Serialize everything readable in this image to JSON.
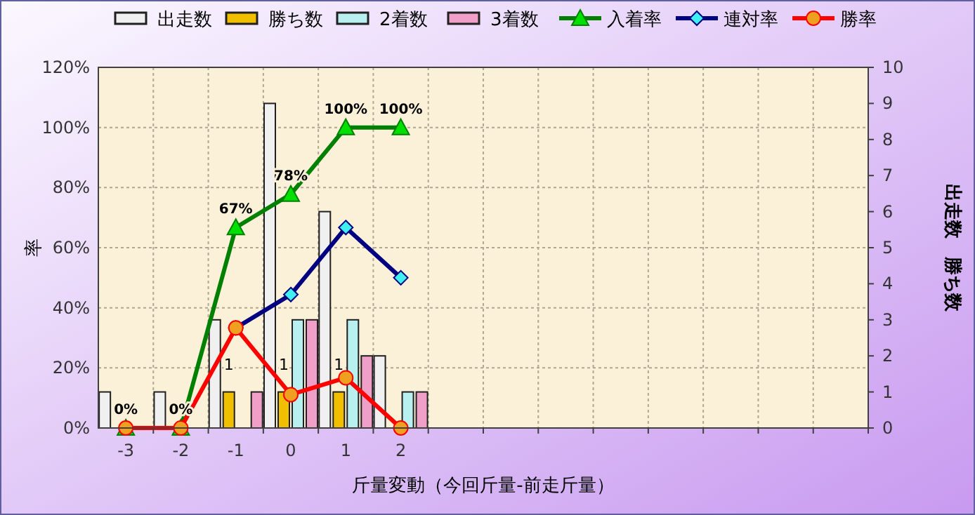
{
  "chart_data": {
    "type": "bar",
    "xlabel": "斤量変動（今回斤量-前走斤量）",
    "ylabel": "率",
    "y2label": "出走数　勝ち数",
    "categories": [
      "-3",
      "-2",
      "-1",
      "0",
      "1",
      "2",
      null,
      null,
      null,
      null,
      null,
      null,
      null,
      null
    ],
    "series": [
      {
        "name": "出走数",
        "axis": "y2",
        "color": "#f0f0f0",
        "values": [
          1,
          1,
          3,
          9,
          6,
          2,
          null,
          null,
          null,
          null,
          null,
          null,
          null,
          null
        ]
      },
      {
        "name": "勝ち数",
        "axis": "y2",
        "color": "#f0c000",
        "values": [
          0,
          0,
          1,
          1,
          1,
          0,
          null,
          null,
          null,
          null,
          null,
          null,
          null,
          null
        ],
        "value_labels": [
          null,
          null,
          "1",
          "1",
          "1",
          null,
          null,
          null,
          null,
          null,
          null,
          null,
          null,
          null
        ]
      },
      {
        "name": "2着数",
        "axis": "y2",
        "color": "#b8f0f0",
        "values": [
          0,
          0,
          0,
          3,
          3,
          1,
          null,
          null,
          null,
          null,
          null,
          null,
          null,
          null
        ]
      },
      {
        "name": "3着数",
        "axis": "y2",
        "color": "#f0a0c8",
        "values": [
          0,
          0,
          1,
          3,
          2,
          1,
          null,
          null,
          null,
          null,
          null,
          null,
          null,
          null
        ]
      },
      {
        "name": "入着率",
        "type": "line",
        "color": "#008000",
        "marker": "triangle",
        "values": [
          0,
          0,
          66.7,
          77.8,
          100,
          100,
          null,
          null,
          null,
          null,
          null,
          null,
          null,
          null
        ],
        "value_labels": [
          "0%",
          "0%",
          "67%",
          "78%",
          "100%",
          "100%",
          null,
          null,
          null,
          null,
          null,
          null,
          null,
          null
        ]
      },
      {
        "name": "連対率",
        "type": "line",
        "color": "#000080",
        "marker": "diamond",
        "values": [
          null,
          null,
          33.3,
          44.4,
          66.7,
          50,
          null,
          null,
          null,
          null,
          null,
          null,
          null,
          null
        ]
      },
      {
        "name": "勝率",
        "type": "line",
        "color": "#ff0000",
        "marker": "circle",
        "values": [
          0,
          0,
          33.3,
          11.1,
          16.7,
          0,
          null,
          null,
          null,
          null,
          null,
          null,
          null,
          null
        ]
      }
    ],
    "ylim": [
      0,
      120
    ],
    "yticks": [
      {
        "value": 0,
        "label": "0%"
      },
      {
        "value": 20,
        "label": "20%"
      },
      {
        "value": 40,
        "label": "40%"
      },
      {
        "value": 60,
        "label": "60%"
      },
      {
        "value": 80,
        "label": "80%"
      },
      {
        "value": 100,
        "label": "100%"
      },
      {
        "value": 120,
        "label": "120%"
      }
    ],
    "y2lim": [
      0,
      10
    ],
    "y2ticks": [
      0,
      1,
      2,
      3,
      4,
      5,
      6,
      7,
      8,
      9,
      10
    ],
    "grid": true,
    "legend": "top",
    "line_style": "solid"
  }
}
